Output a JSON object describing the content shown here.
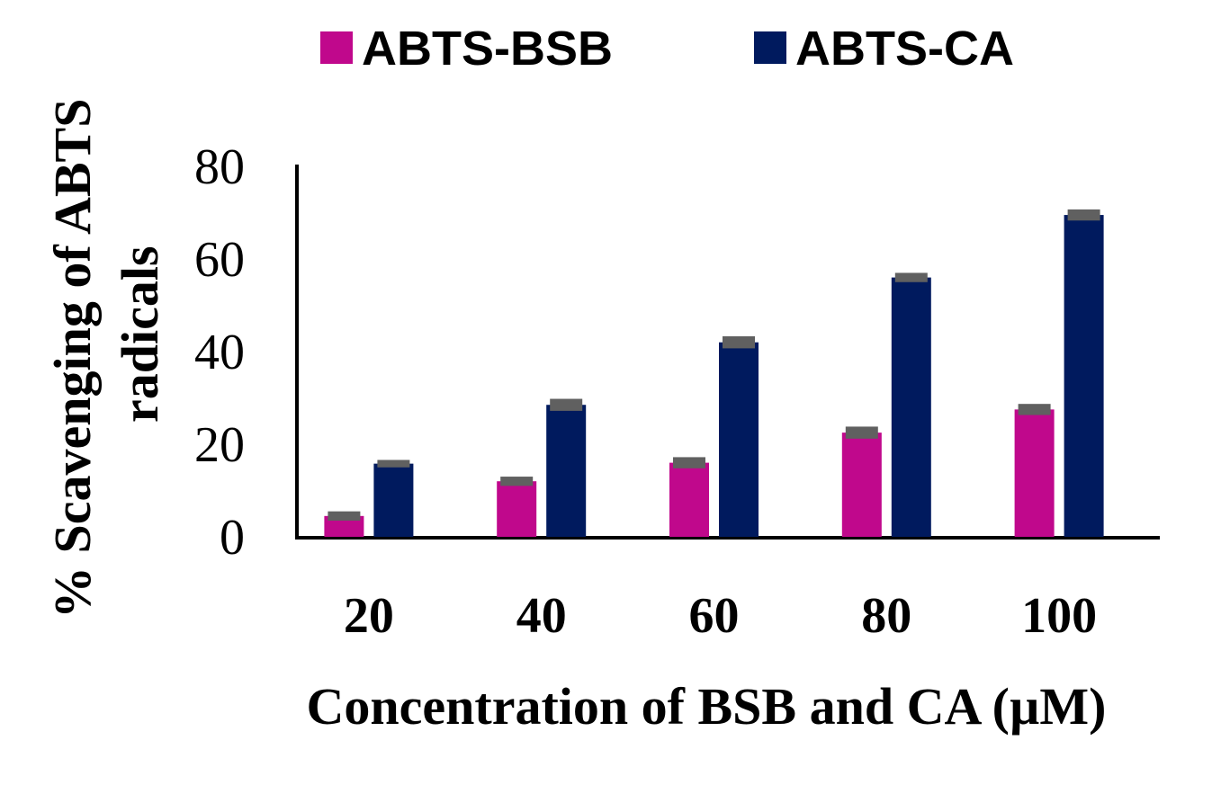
{
  "chart_data": {
    "type": "bar",
    "categories": [
      "20",
      "40",
      "60",
      "80",
      "100"
    ],
    "series": [
      {
        "name": "ABTS-BSB",
        "color": "#c0088c",
        "values": [
          4.5,
          12,
          16,
          22.5,
          27.5
        ],
        "errors": [
          1,
          1,
          1.2,
          1.3,
          1.2
        ]
      },
      {
        "name": "ABTS-CA",
        "color": "#001a5e",
        "values": [
          15.8,
          28.5,
          42,
          56,
          69.5
        ],
        "errors": [
          0.8,
          1.3,
          1.3,
          1,
          1.2
        ]
      }
    ],
    "error_bar_color": "#606060",
    "ylim": [
      0,
      80
    ],
    "yticks": [
      0,
      20,
      40,
      60,
      80
    ],
    "ylabel_line1": "% Scavenging of ABTS",
    "ylabel_line2": "radicals",
    "xlabel": "Concentration of BSB and CA (µM)",
    "legend_position": "top",
    "grid": false
  }
}
